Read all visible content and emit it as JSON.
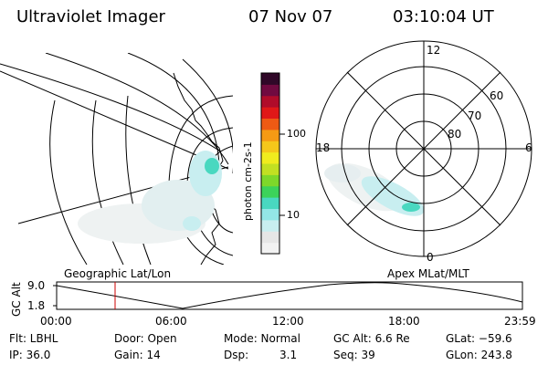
{
  "header": {
    "instrument": "Ultraviolet Imager",
    "date": "07 Nov 07",
    "time": "03:10:04 UT"
  },
  "geo_panel": {
    "caption": "Geographic Lat/Lon"
  },
  "apex_panel": {
    "caption": "Apex  MLat/MLT",
    "mlt_labels": [
      "12",
      "18",
      "6",
      "0"
    ],
    "mlat_labels": [
      "60",
      "70",
      "80"
    ]
  },
  "colorbar": {
    "unit_label": "photon cm-2s-1",
    "tick_labels": [
      "100",
      "10"
    ],
    "colors": [
      "#f2f2f2",
      "#e6e6e6",
      "#c8eef0",
      "#93e6e6",
      "#49d8c0",
      "#3cd35a",
      "#7ed82a",
      "#c2e022",
      "#f0ec1e",
      "#f5c71a",
      "#f59a14",
      "#ee5a14",
      "#e01818",
      "#b00c2a",
      "#700a40",
      "#300828"
    ]
  },
  "altitude_strip": {
    "axis_title": "GC Alt",
    "y_ticks": [
      "9.0",
      "1.8"
    ],
    "x_ticks": [
      "00:00",
      "06:00",
      "12:00",
      "18:00",
      "23:59"
    ],
    "cursor_color": "#cc0000"
  },
  "info": {
    "row1": [
      "Flt: LBHL",
      "Door: Open",
      "Mode: Normal",
      "GC Alt: 6.6 Re",
      "GLat: −59.6"
    ],
    "row2": [
      "IP: 36.0",
      "Gain: 14",
      "Dsp:",
      "3.1",
      "Seq: 39",
      "GLon: 243.8"
    ]
  }
}
